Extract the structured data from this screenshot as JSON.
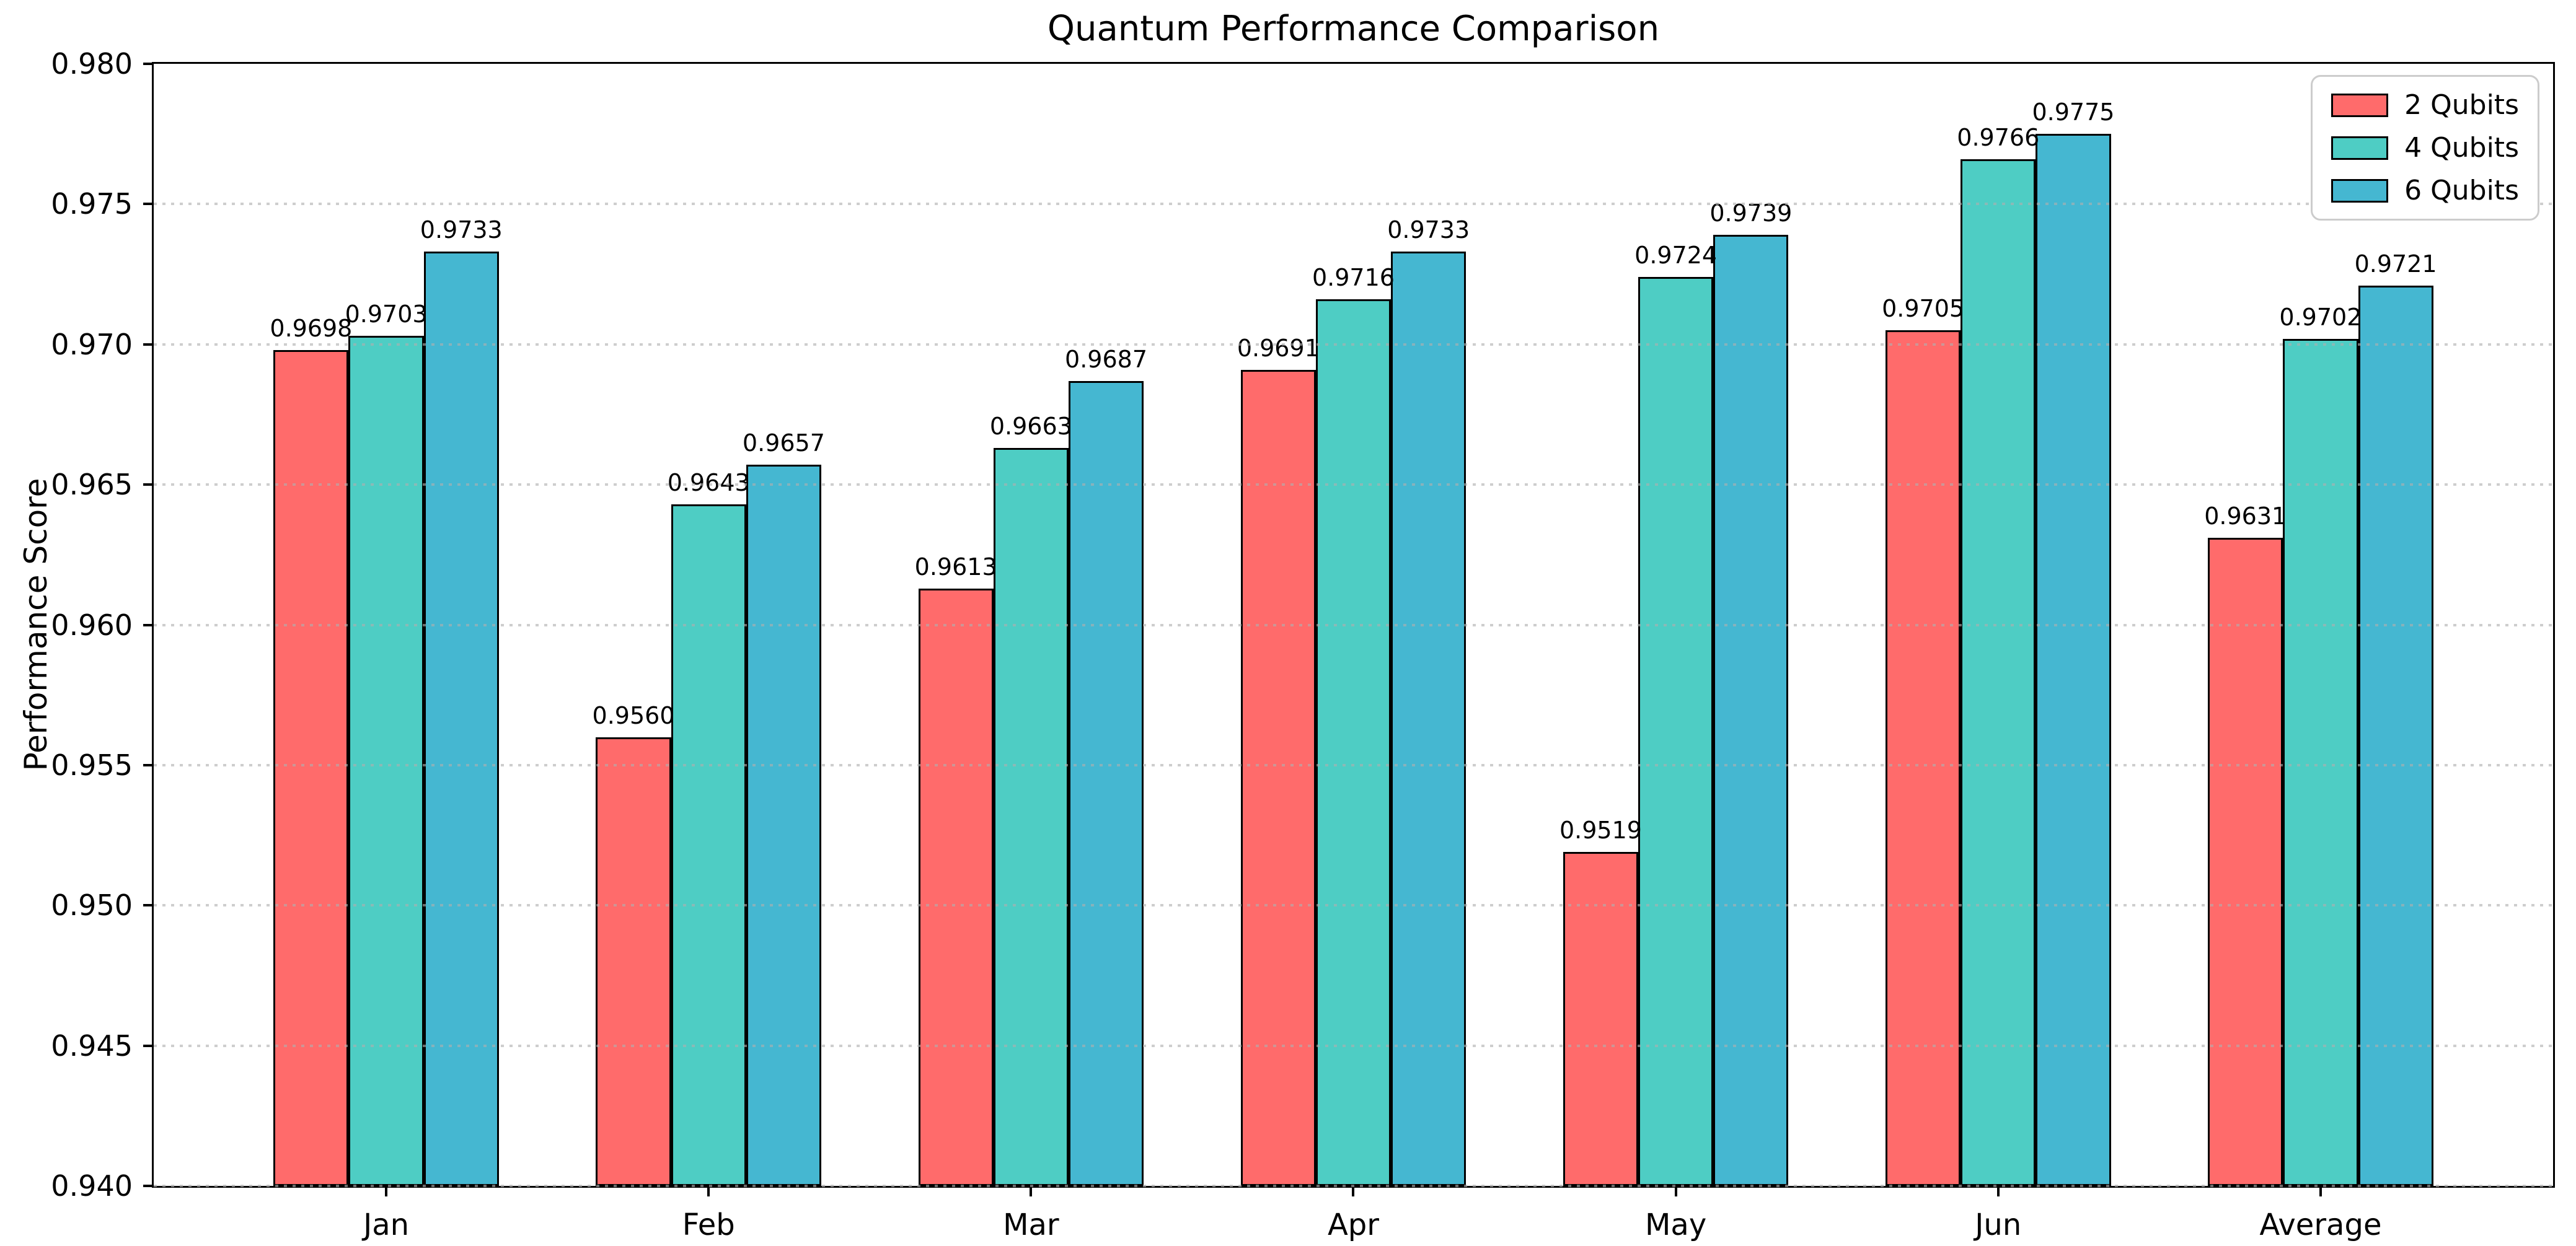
{
  "title": "Quantum Performance Comparison",
  "chart_data": {
    "type": "bar",
    "title": "Quantum Performance Comparison",
    "xlabel": "",
    "ylabel": "Performance Score",
    "categories": [
      "Jan",
      "Feb",
      "Mar",
      "Apr",
      "May",
      "Jun",
      "Average"
    ],
    "series": [
      {
        "name": "2 Qubits",
        "color": "#FF6B6B",
        "values": [
          0.9698,
          0.956,
          0.9613,
          0.9691,
          0.9519,
          0.9705,
          0.9631
        ]
      },
      {
        "name": "4 Qubits",
        "color": "#4ECDC4",
        "values": [
          0.9703,
          0.9643,
          0.9663,
          0.9716,
          0.9724,
          0.9766,
          0.9702
        ]
      },
      {
        "name": "6 Qubits",
        "color": "#45B7D1",
        "values": [
          0.9733,
          0.9657,
          0.9687,
          0.9733,
          0.9739,
          0.9775,
          0.9721
        ]
      }
    ],
    "ylim": [
      0.94,
      0.98
    ],
    "ytick_labels": [
      "0.940",
      "0.945",
      "0.950",
      "0.955",
      "0.960",
      "0.965",
      "0.970",
      "0.975",
      "0.980"
    ],
    "bar_edge_color": "#000000",
    "grid": "horizontal-dotted",
    "grid_color": "#b0b0b0",
    "legend_position": "upper-right",
    "value_label_decimals": 4
  }
}
